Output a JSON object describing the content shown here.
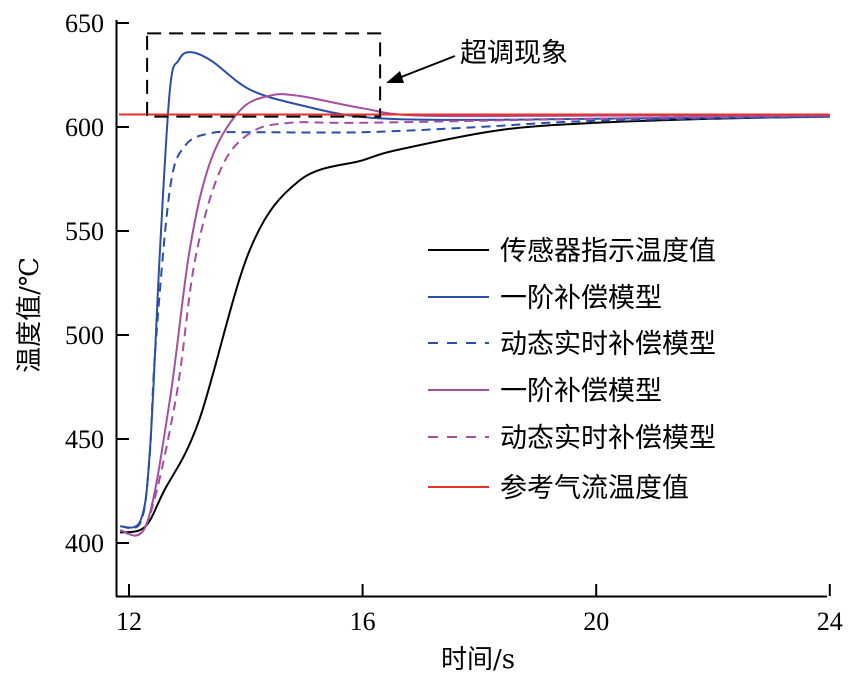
{
  "chart_data": {
    "type": "line",
    "title": "",
    "xlabel": "时间/s",
    "ylabel": "温度值/℃",
    "xlim": [
      11.83,
      24
    ],
    "ylim": [
      374,
      651
    ],
    "xticks": [
      12,
      16,
      20,
      24
    ],
    "yticks": [
      400,
      450,
      500,
      550,
      600,
      650
    ],
    "grid": false,
    "legend_placement": "center-right",
    "annotation": {
      "text": "超调现象",
      "box_x": [
        12.31,
        16.3
      ],
      "box_y": [
        605,
        645
      ]
    },
    "series": [
      {
        "name": "传感器指示温度值",
        "color": "#000000",
        "dash": false,
        "x": [
          11.85,
          12.27,
          12.6,
          13.2,
          14.07,
          14.93,
          16,
          16.6,
          18.35,
          20,
          22,
          24
        ],
        "y": [
          405,
          407.7,
          425,
          459,
          541,
          574.5,
          584,
          589,
          598.5,
          602,
          604,
          605
        ]
      },
      {
        "name": "一阶补偿模型",
        "color": "#2a4fa8",
        "dash": false,
        "x": [
          11.85,
          12.2,
          12.36,
          12.53,
          12.7,
          12.85,
          13.04,
          13.4,
          14.07,
          14.93,
          16,
          17.5,
          20,
          24
        ],
        "y": [
          408,
          411,
          445,
          541,
          618,
          632,
          636,
          632,
          618,
          610.6,
          604.8,
          603.4,
          604,
          605
        ]
      },
      {
        "name": "动态实时补偿模型",
        "color": "#2a4fa8",
        "dash": true,
        "x": [
          11.85,
          12.2,
          12.35,
          12.45,
          12.7,
          12.96,
          13.4,
          14,
          16,
          18,
          20,
          24
        ],
        "y": [
          408,
          410,
          440,
          493,
          570,
          591,
          597,
          597.5,
          597.5,
          600,
          603,
          605
        ]
      },
      {
        "name": "一阶补偿模型",
        "color": "#a64ea0",
        "dash": false,
        "x": [
          11.85,
          12.3,
          12.7,
          13.04,
          13.4,
          13.9,
          14.4,
          14.9,
          16,
          17,
          20,
          24
        ],
        "y": [
          406,
          409,
          469,
          541,
          584,
          608,
          615,
          615,
          609,
          605.5,
          605.5,
          605.5
        ]
      },
      {
        "name": "动态实时补偿模型",
        "color": "#a64ea0",
        "dash": true,
        "x": [
          11.85,
          12.3,
          12.8,
          13.13,
          13.56,
          14.07,
          14.76,
          16,
          20,
          24
        ],
        "y": [
          406,
          409,
          469,
          536,
          579,
          597,
          602,
          602,
          604,
          605.5
        ]
      },
      {
        "name": "参考气流温度值",
        "color": "#e8302a",
        "dash": false,
        "x": [
          11.83,
          24
        ],
        "y": [
          606,
          606
        ]
      }
    ]
  }
}
